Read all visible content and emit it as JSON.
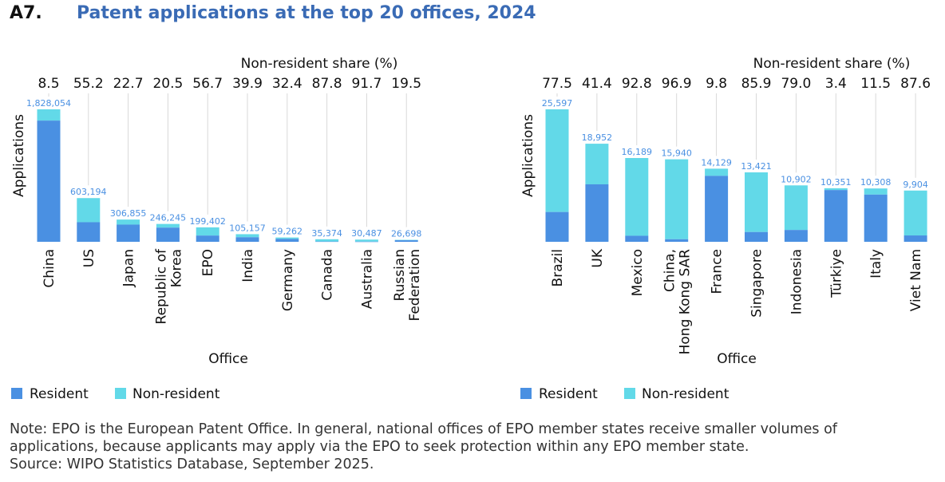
{
  "header": {
    "number": "A7.",
    "title": "Patent applications at the top 20 offices, 2024"
  },
  "colors": {
    "resident": "#4a90e2",
    "non_resident": "#62d9e8",
    "value_label": "#4a90e2",
    "guide": "#d9d9d9"
  },
  "chart_data": [
    {
      "type": "bar",
      "stacked": true,
      "xlabel": "Office",
      "ylabel": "Applications",
      "top_label": "Non-resident share (%)",
      "legend": [
        "Resident",
        "Non-resident"
      ],
      "legend_position": "bottom-left",
      "grid": false,
      "categories": [
        [
          "China"
        ],
        [
          "US"
        ],
        [
          "Japan"
        ],
        [
          "Republic of",
          "Korea"
        ],
        [
          "EPO"
        ],
        [
          "India"
        ],
        [
          "Germany"
        ],
        [
          "Canada"
        ],
        [
          "Australia"
        ],
        [
          "Russian",
          "Federation"
        ]
      ],
      "totals": [
        1828054,
        603194,
        306855,
        246245,
        199402,
        105157,
        59262,
        35374,
        30487,
        26698
      ],
      "total_labels": [
        "1,828,054",
        "603,194",
        "306,855",
        "246,245",
        "199,402",
        "105,157",
        "59,262",
        "35,374",
        "30,487",
        "26,698"
      ],
      "non_resident_share": [
        "8.5",
        "55.2",
        "22.7",
        "20.5",
        "56.7",
        "39.9",
        "32.4",
        "87.8",
        "91.7",
        "19.5"
      ]
    },
    {
      "type": "bar",
      "stacked": true,
      "xlabel": "Office",
      "ylabel": "Applications",
      "top_label": "Non-resident share (%)",
      "legend": [
        "Resident",
        "Non-resident"
      ],
      "legend_position": "bottom-left",
      "grid": false,
      "categories": [
        [
          "Brazil"
        ],
        [
          "UK"
        ],
        [
          "Mexico"
        ],
        [
          "China,",
          "Hong Kong SAR"
        ],
        [
          "France"
        ],
        [
          "Singapore"
        ],
        [
          "Indonesia"
        ],
        [
          "Türkiye"
        ],
        [
          "Italy"
        ],
        [
          "Viet Nam"
        ]
      ],
      "totals": [
        25597,
        18952,
        16189,
        15940,
        14129,
        13421,
        10902,
        10351,
        10308,
        9904
      ],
      "total_labels": [
        "25,597",
        "18,952",
        "16,189",
        "15,940",
        "14,129",
        "13,421",
        "10,902",
        "10,351",
        "10,308",
        "9,904"
      ],
      "non_resident_share": [
        "77.5",
        "41.4",
        "92.8",
        "96.9",
        "9.8",
        "85.9",
        "79.0",
        "3.4",
        "11.5",
        "87.6"
      ]
    }
  ],
  "note": {
    "lines": [
      "Note: EPO is the European Patent Office. In general, national offices of EPO member states receive smaller volumes of",
      "applications, because applicants may apply via the EPO to seek protection within any EPO member state.",
      "Source: WIPO Statistics Database, September 2025."
    ]
  }
}
